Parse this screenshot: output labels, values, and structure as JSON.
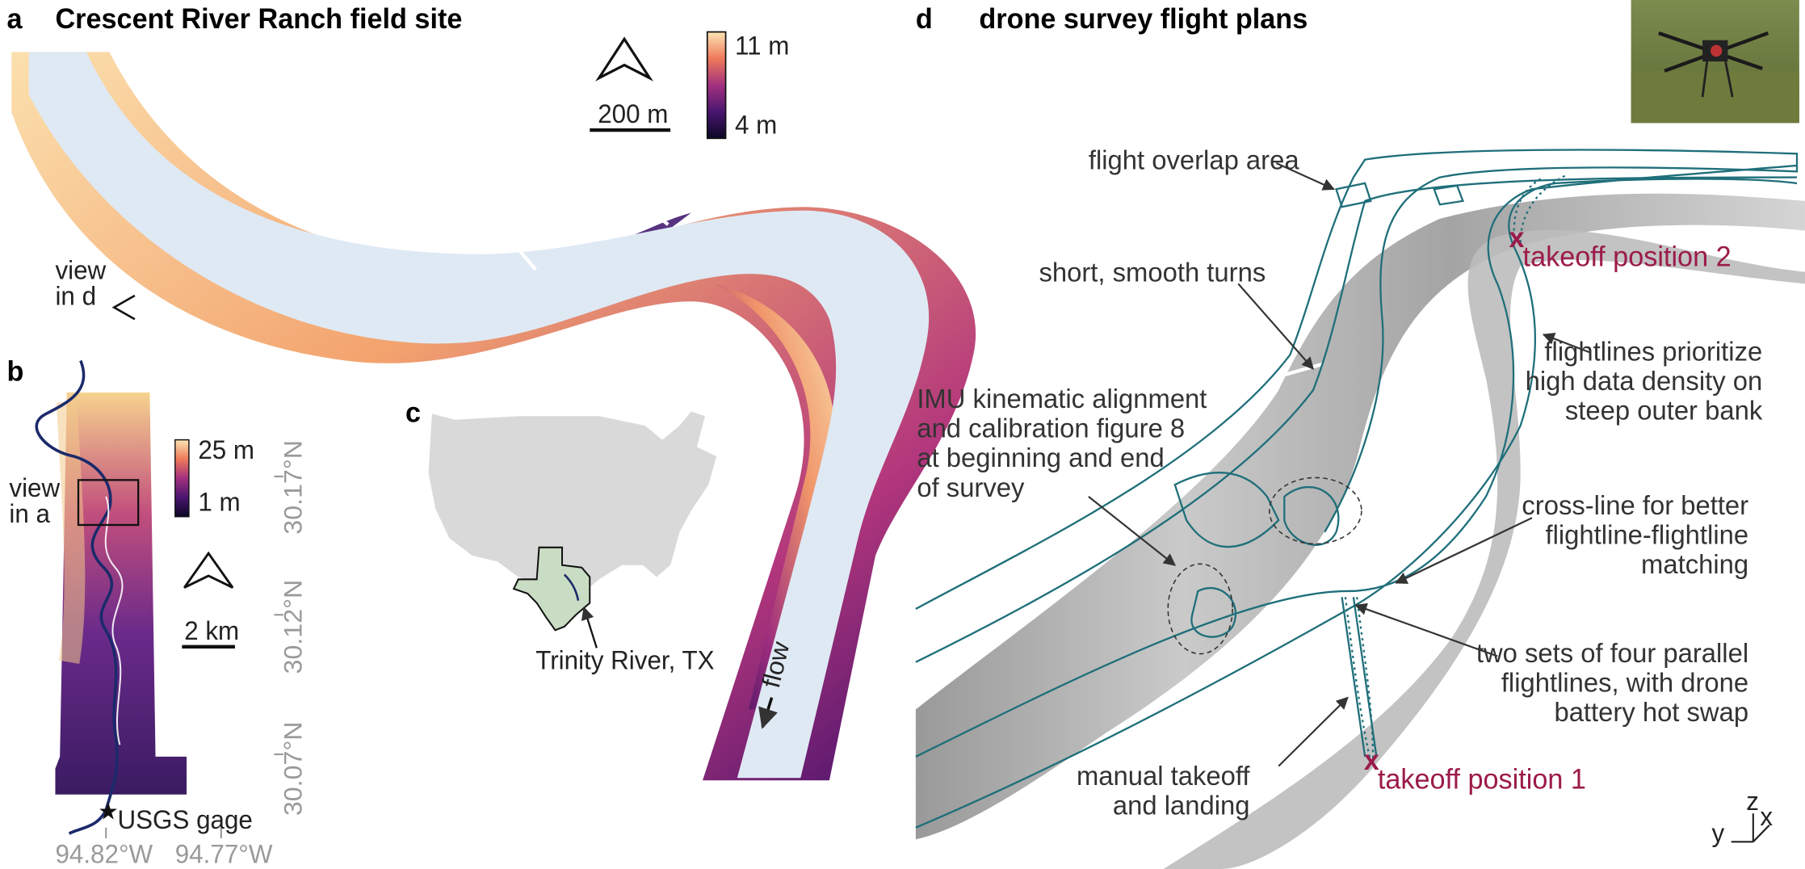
{
  "panel_a": {
    "letter": "a",
    "title": "Crescent River Ranch field site",
    "scale_bar": "200 m",
    "colorbar": {
      "max": "11 m",
      "min": "4 m"
    },
    "view_label_line1": "view",
    "view_label_line2": "in d",
    "flow_label": "flow",
    "north_icon": "north-arrow-icon"
  },
  "panel_b": {
    "letter": "b",
    "view_label_line1": "view",
    "view_label_line2": "in a",
    "colorbar": {
      "max": "25 m",
      "min": "1 m"
    },
    "scale_bar": "2 km",
    "lat_ticks": [
      "30.17°N",
      "30.12°N",
      "30.07°N"
    ],
    "lon_ticks": [
      "94.82°W",
      "94.77°W"
    ],
    "gage_label": "USGS gage",
    "north_icon": "north-arrow-icon"
  },
  "panel_c": {
    "letter": "c",
    "river_label": "Trinity River, TX"
  },
  "panel_d": {
    "letter": "d",
    "title": "drone survey flight plans",
    "annotations": {
      "flight_overlap": "flight overlap area",
      "short_turns": "short, smooth turns",
      "imu": [
        "IMU kinematic alignment",
        "and calibration figure 8",
        "at beginning and end",
        "of survey"
      ],
      "prioritize": [
        "flightlines prioritize",
        "high data density on",
        "steep outer bank"
      ],
      "cross_line": [
        "cross-line for better",
        "flightline-flightline",
        "matching"
      ],
      "two_sets": [
        "two sets of four parallel",
        "flightlines, with drone",
        "battery hot swap"
      ],
      "manual": [
        "manual takeoff",
        "and landing"
      ],
      "takeoff1": "takeoff position 1",
      "takeoff2": "takeoff position 2",
      "takeoff_marker": "x",
      "axes": {
        "x": "x",
        "y": "y",
        "z": "z"
      }
    }
  },
  "colors": {
    "river_water": "#dfe9f4",
    "flight_line": "#1f6f7a",
    "takeoff": "#9b1b4a",
    "us_map": "#d9d9d9",
    "texas": "#c9dcc4",
    "river_line": "#1b2a6b"
  }
}
